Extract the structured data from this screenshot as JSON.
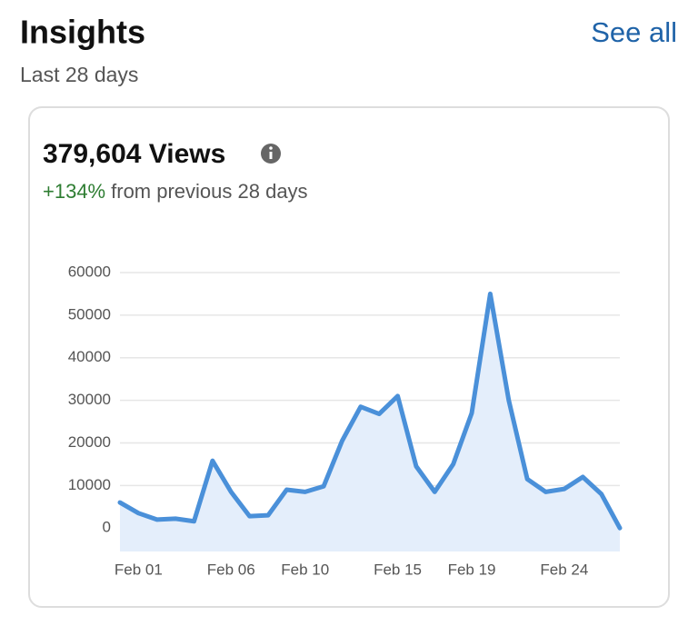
{
  "header": {
    "title": "Insights",
    "link": "See all",
    "subtitle": "Last 28 days"
  },
  "card": {
    "views": "379,604 Views",
    "change": "+134%",
    "change_text": "from previous 28 days"
  },
  "chart_data": {
    "type": "line",
    "categories": [
      null,
      "Feb 01",
      null,
      null,
      null,
      null,
      "Feb 06",
      null,
      null,
      null,
      "Feb 10",
      null,
      null,
      null,
      null,
      "Feb 15",
      null,
      null,
      null,
      "Feb 19",
      null,
      null,
      null,
      null,
      "Feb 24",
      null,
      null,
      null
    ],
    "series": [
      {
        "name": "Views",
        "color": "#4a90d9",
        "values": [
          6000,
          3500,
          2000,
          2200,
          1600,
          15800,
          8500,
          2800,
          3000,
          9000,
          8500,
          9800,
          20500,
          28500,
          26800,
          31000,
          14500,
          8500,
          15000,
          27000,
          55000,
          30000,
          11500,
          8500,
          9200,
          12000,
          8000,
          0
        ]
      }
    ],
    "ylim": [
      -5500,
      60000
    ],
    "yticks": [
      0,
      10000,
      20000,
      30000,
      40000,
      50000,
      60000
    ],
    "grid": true
  }
}
